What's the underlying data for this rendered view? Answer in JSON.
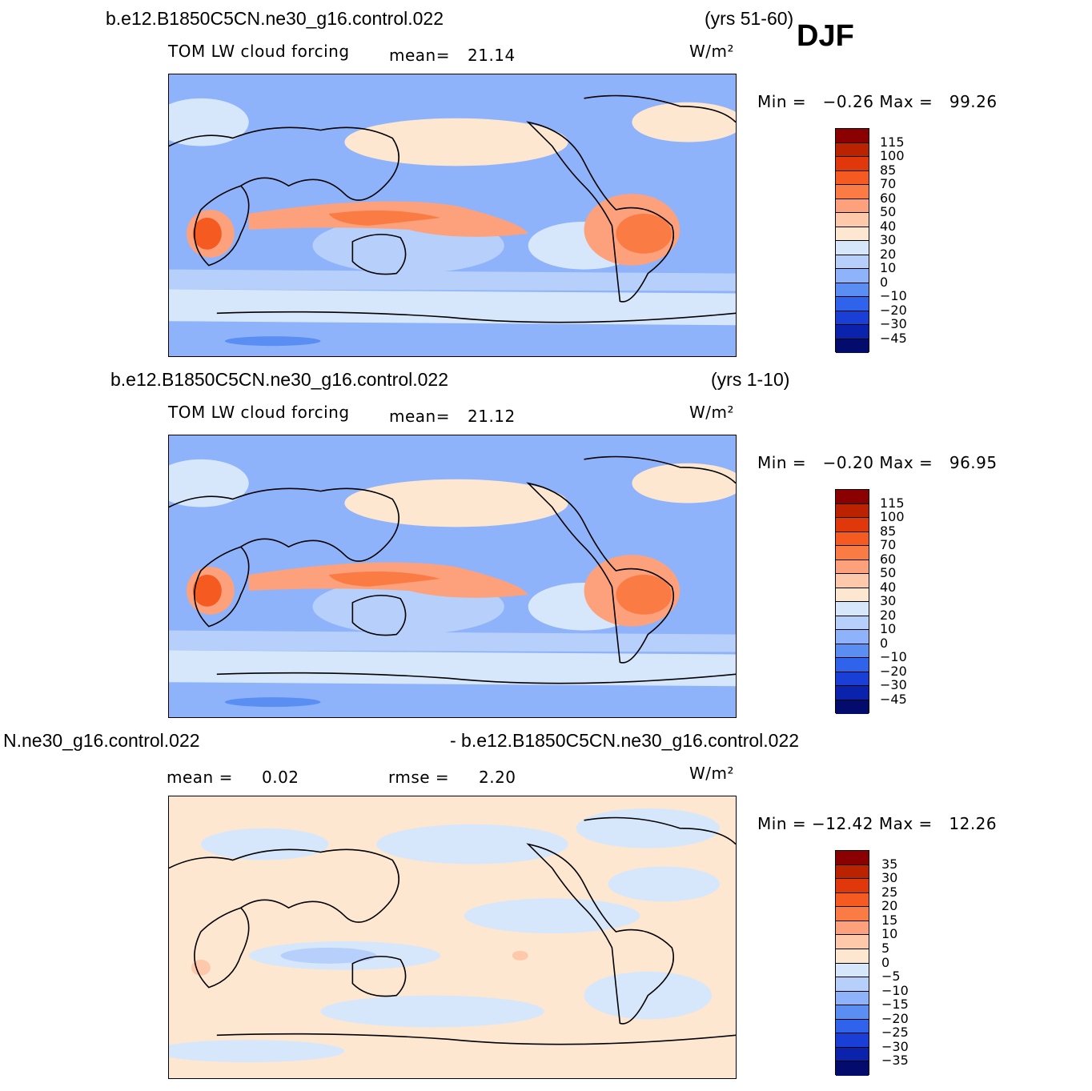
{
  "season": "DJF",
  "panels": [
    {
      "case": "b.e12.B1850C5CN.ne30_g16.control.022",
      "years": "(yrs 51-60)",
      "variable": "TOM LW cloud forcing",
      "mean_label": "mean=",
      "mean_value": "21.14",
      "units": "W/m²",
      "minmax": "Min =   −0.26 Max =   99.26",
      "legend_labels": [
        "115",
        "100",
        "85",
        "70",
        "60",
        "50",
        "40",
        "30",
        "20",
        "10",
        "0",
        "−10",
        "−20",
        "−30",
        "−45"
      ],
      "legend_colors": [
        "#8b0000",
        "#bb2200",
        "#e0380a",
        "#f55a20",
        "#fb7b45",
        "#fda17c",
        "#fec9aa",
        "#fde7d0",
        "#d6e7fb",
        "#b7d0fb",
        "#8fb3fa",
        "#5b8ef2",
        "#2f63ec",
        "#1a3fd6",
        "#0b22ad",
        "#030b6d"
      ]
    },
    {
      "case": "b.e12.B1850C5CN.ne30_g16.control.022",
      "years": "(yrs 1-10)",
      "variable": "TOM LW cloud forcing",
      "mean_label": "mean=",
      "mean_value": "21.12",
      "units": "W/m²",
      "minmax": "Min =   −0.20 Max =   96.95",
      "legend_labels": [
        "115",
        "100",
        "85",
        "70",
        "60",
        "50",
        "40",
        "30",
        "20",
        "10",
        "0",
        "−10",
        "−20",
        "−30",
        "−45"
      ],
      "legend_colors": [
        "#8b0000",
        "#bb2200",
        "#e0380a",
        "#f55a20",
        "#fb7b45",
        "#fda17c",
        "#fec9aa",
        "#fde7d0",
        "#d6e7fb",
        "#b7d0fb",
        "#8fb3fa",
        "#5b8ef2",
        "#2f63ec",
        "#1a3fd6",
        "#0b22ad",
        "#030b6d"
      ]
    },
    {
      "case_left": "Ν.ne30_g16.control.022",
      "case_right": "- b.e12.B1850C5CN.ne30_g16.control.022",
      "mean_label": "mean =",
      "mean_value": "0.02",
      "rmse_label": "rmse =",
      "rmse_value": "2.20",
      "units": "W/m²",
      "minmax": "Min = −12.42 Max =   12.26",
      "legend_labels": [
        "35",
        "30",
        "25",
        "20",
        "15",
        "10",
        "5",
        "0",
        "−5",
        "−10",
        "−15",
        "−20",
        "−25",
        "−30",
        "−35"
      ],
      "legend_colors": [
        "#8b0000",
        "#bb2200",
        "#e0380a",
        "#f55a20",
        "#fb7b45",
        "#fda17c",
        "#fec9aa",
        "#fde7d0",
        "#d6e7fb",
        "#b7d0fb",
        "#8fb3fa",
        "#5b8ef2",
        "#2f63ec",
        "#1a3fd6",
        "#0b22ad",
        "#030b6d"
      ]
    }
  ]
}
